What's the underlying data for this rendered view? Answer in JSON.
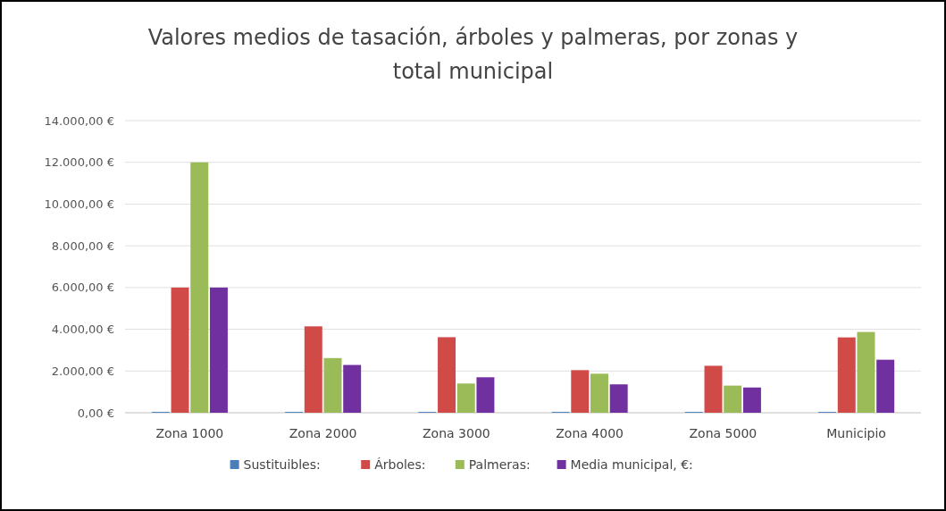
{
  "chart_data": {
    "type": "bar",
    "title": "Valores medios de tasación, árboles y palmeras, por zonas y total municipal",
    "categories": [
      "Zona 1000",
      "Zona 2000",
      "Zona 3000",
      "Zona 4000",
      "Zona 5000",
      "Municipio"
    ],
    "series": [
      {
        "name": "Sustituibles:",
        "color": "#4a7ebb",
        "values": [
          40,
          40,
          40,
          40,
          40,
          40
        ]
      },
      {
        "name": "Árboles:",
        "color": "#d04a48",
        "values": [
          6000,
          4140,
          3620,
          2040,
          2250,
          3610
        ]
      },
      {
        "name": "Palmeras:",
        "color": "#9bbb59",
        "values": [
          12000,
          2620,
          1400,
          1870,
          1300,
          3870
        ]
      },
      {
        "name": "Media municipal, €:",
        "color": "#7030a0",
        "values": [
          6000,
          2290,
          1700,
          1360,
          1210,
          2540
        ]
      }
    ],
    "ylim": [
      0,
      14000
    ],
    "yticks": [
      {
        "value": 0,
        "label": "0,00 €"
      },
      {
        "value": 2000,
        "label": "2.000,00 €"
      },
      {
        "value": 4000,
        "label": "4.000,00 €"
      },
      {
        "value": 6000,
        "label": "6.000,00 €"
      },
      {
        "value": 8000,
        "label": "8.000,00 €"
      },
      {
        "value": 10000,
        "label": "10.000,00 €"
      },
      {
        "value": 12000,
        "label": "12.000,00 €"
      },
      {
        "value": 14000,
        "label": "14.000,00 €"
      }
    ],
    "grid": "y",
    "legend": "bottom"
  }
}
